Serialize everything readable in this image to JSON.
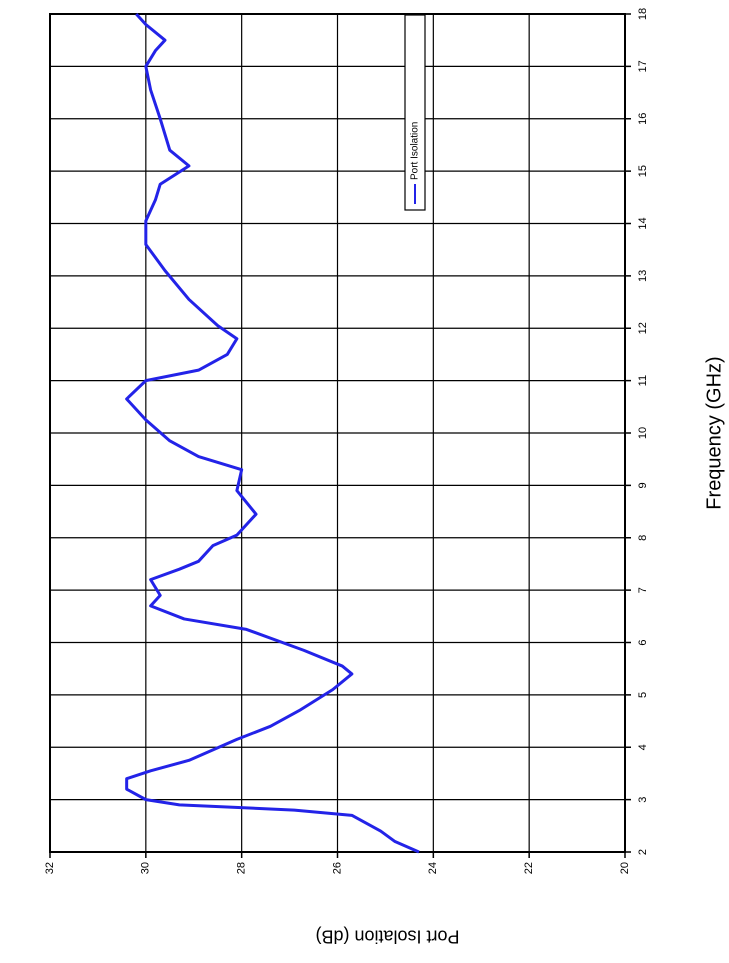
{
  "chart_data": {
    "type": "line",
    "xlabel": "Frequency (GHz)",
    "ylabel": "Port Isolation (dB)",
    "x": [
      2.0,
      2.2,
      2.4,
      2.7,
      2.8,
      2.9,
      3.0,
      3.2,
      3.4,
      3.55,
      3.75,
      3.95,
      4.15,
      4.4,
      4.7,
      5.1,
      5.4,
      5.55,
      5.85,
      6.25,
      6.45,
      6.7,
      6.9,
      7.2,
      7.4,
      7.55,
      7.85,
      8.05,
      8.45,
      8.9,
      9.3,
      9.55,
      9.85,
      10.25,
      10.65,
      11.0,
      11.2,
      11.5,
      11.8,
      12.05,
      12.55,
      13.1,
      13.6,
      14.05,
      14.45,
      14.75,
      15.1,
      15.4,
      16.0,
      16.55,
      17.0,
      17.3,
      17.5,
      17.8,
      18.0
    ],
    "series": [
      {
        "name": "Port Isolation",
        "color": "#2323e8",
        "values": [
          24.3,
          24.8,
          25.1,
          25.7,
          26.9,
          29.3,
          30.0,
          30.4,
          30.4,
          29.9,
          29.1,
          28.6,
          28.1,
          27.4,
          26.8,
          26.1,
          25.7,
          25.9,
          26.7,
          27.9,
          29.2,
          29.9,
          29.7,
          29.9,
          29.3,
          28.9,
          28.6,
          28.1,
          27.7,
          28.1,
          28.0,
          28.9,
          29.5,
          30.0,
          30.4,
          30.0,
          28.9,
          28.3,
          28.1,
          28.5,
          29.1,
          29.6,
          30.0,
          30.0,
          29.8,
          29.7,
          29.1,
          29.5,
          29.7,
          29.9,
          30.0,
          29.8,
          29.6,
          30.0,
          30.2
        ]
      }
    ],
    "xlim": [
      2,
      18
    ],
    "xticks": [
      2,
      3,
      4,
      5,
      6,
      7,
      8,
      9,
      10,
      11,
      12,
      13,
      14,
      15,
      16,
      17,
      18
    ],
    "ylim": [
      20,
      32
    ],
    "yticks": [
      20,
      22,
      24,
      26,
      28,
      30,
      32
    ],
    "grid": true,
    "legend": "top right",
    "rotated": true
  }
}
